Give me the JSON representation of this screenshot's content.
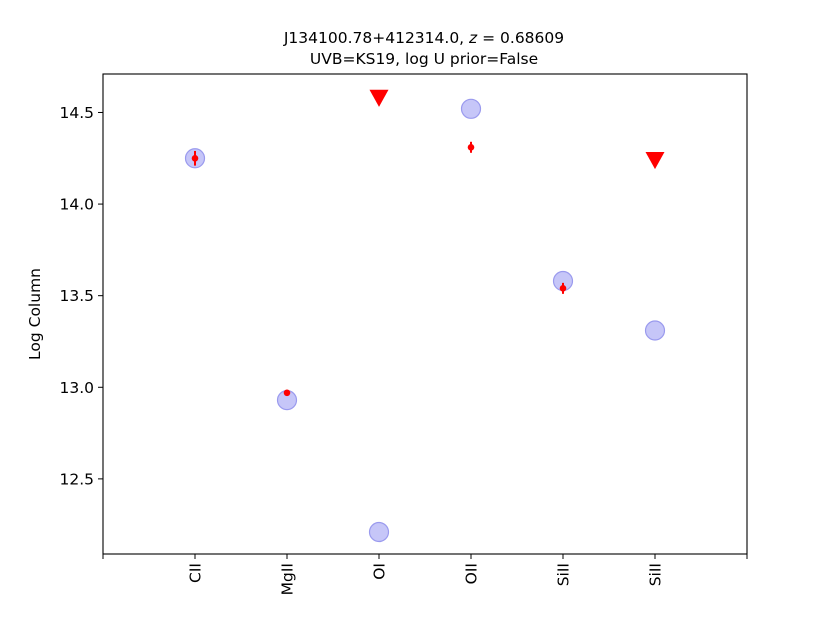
{
  "chart_data": {
    "type": "scatter",
    "title_line1_prefix": "J134100.78+412314.0, ",
    "title_line1_z": "z",
    "title_line1_suffix": " = 0.68609",
    "title_line2": "UVB=KS19, log U prior=False",
    "xlabel": "",
    "ylabel": "Log Column",
    "categories": [
      "CII",
      "MgII",
      "OI",
      "OII",
      "SiII",
      "SiII"
    ],
    "xlim": [
      -1,
      6
    ],
    "ylim": [
      12.09,
      14.71
    ],
    "yticks": [
      "12.5",
      "13.0",
      "13.5",
      "14.0",
      "14.5"
    ],
    "model_color": "#b3b3f5",
    "measurement_color": "#ff0000",
    "series": [
      {
        "marker": "circle",
        "values": [
          14.25,
          12.93,
          12.21,
          14.52,
          13.58,
          13.31
        ]
      },
      {
        "marker": "errorbar-point",
        "values": [
          14.25,
          12.97,
          null,
          14.31,
          13.54,
          null
        ],
        "errors": [
          0.04,
          0.01,
          null,
          0.03,
          0.03,
          null
        ]
      },
      {
        "marker": "triangle-down",
        "values": [
          null,
          null,
          14.58,
          null,
          null,
          14.24
        ]
      }
    ],
    "grid": false,
    "legend": "none"
  }
}
